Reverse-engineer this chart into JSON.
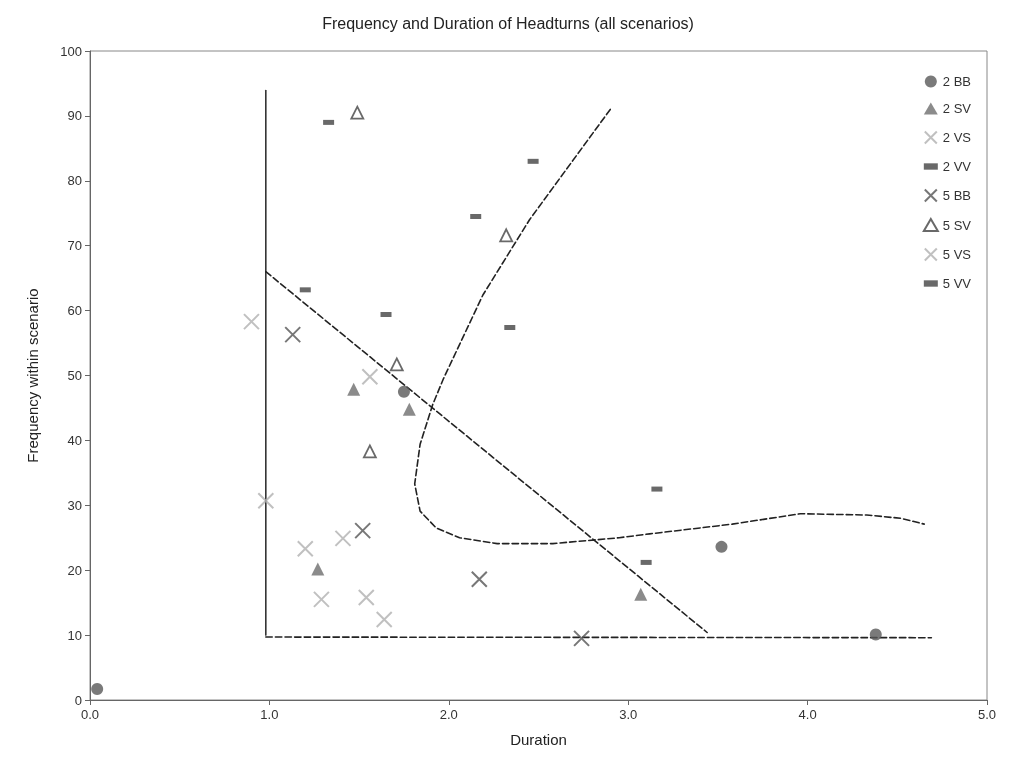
{
  "chart_data": {
    "type": "scatter",
    "title": "Frequency and Duration of Headturns (all scenarios)",
    "xlabel": "Duration",
    "ylabel": "Frequency within scenario",
    "xlim": [
      0,
      5
    ],
    "xticks": [
      {
        "value": 0,
        "label": "0.0"
      },
      {
        "value": 1,
        "label": "1.0"
      },
      {
        "value": 2,
        "label": "2.0"
      },
      {
        "value": 3,
        "label": "3.0"
      },
      {
        "value": 4,
        "label": "4.0"
      },
      {
        "value": 5,
        "label": "5.0"
      }
    ],
    "ylim": [
      0,
      100
    ],
    "yticks": [
      0,
      10,
      20,
      30,
      40,
      50,
      60,
      70,
      80,
      90,
      100
    ],
    "grid": false,
    "legend": "top right",
    "series": [
      {
        "name": "2 BB",
        "color": "#595959",
        "marker": "circle",
        "x": [
          0.04,
          1.75,
          3.52,
          4.38
        ],
        "values": [
          1.7,
          47.5,
          23.6,
          10.1
        ]
      },
      {
        "name": "2 SV",
        "color": "#6e6e6e",
        "marker": "triangle",
        "x": [
          1.47,
          1.78,
          1.27,
          3.07
        ],
        "values": [
          47.9,
          44.8,
          20.2,
          16.3
        ]
      },
      {
        "name": "2 VS",
        "color": "#b0b0b0",
        "marker": "cross",
        "x": [
          1.56,
          1.41,
          1.2,
          1.54
        ],
        "values": [
          49.8,
          24.9,
          23.3,
          15.8
        ]
      },
      {
        "name": "2 VV",
        "color": "#444444",
        "marker": "square",
        "x": [
          1.33,
          1.2,
          2.34,
          3.1
        ],
        "values": [
          89,
          63.2,
          57.4,
          21.2
        ]
      },
      {
        "name": "5 BB",
        "color": "#555555",
        "marker": "cross",
        "x": [
          1.13,
          1.52,
          2.17,
          2.74
        ],
        "values": [
          56.3,
          26.1,
          18.6,
          9.5
        ]
      },
      {
        "name": "5 SV",
        "color": "#444444",
        "marker": "triangle-open",
        "x": [
          1.49,
          2.32,
          1.71,
          1.56
        ],
        "values": [
          90.5,
          71.6,
          51.7,
          38.3
        ]
      },
      {
        "name": "5 VS",
        "color": "#b0b0b0",
        "marker": "cross",
        "x": [
          0.9,
          0.98,
          1.29,
          1.64
        ],
        "values": [
          58.3,
          30.7,
          15.5,
          12.4
        ]
      },
      {
        "name": "5 VV",
        "color": "#444444",
        "marker": "square",
        "x": [
          2.47,
          2.15,
          1.65,
          3.16
        ],
        "values": [
          83,
          74.5,
          59.4,
          32.5
        ]
      },
      {
        "type": "line",
        "color": "#333333",
        "marker": "none",
        "line_style": "solid",
        "x": [
          0.98,
          0.98
        ],
        "values": [
          10,
          93.9
        ]
      },
      {
        "type": "line",
        "color": "#222222",
        "marker": "none",
        "line_style": "dashed",
        "x": [
          0.98,
          4.69
        ],
        "values": [
          9.7,
          9.6
        ]
      },
      {
        "type": "line",
        "color": "#222222",
        "marker": "none",
        "line_style": "dashed",
        "x": [
          0.98,
          3.44
        ],
        "values": [
          66,
          10.4
        ]
      },
      {
        "type": "line",
        "color": "#222222",
        "marker": "none",
        "line_style": "dashed",
        "x": [
          2.9,
          2.45,
          2.19,
          1.97,
          1.91,
          1.84,
          1.81,
          1.84,
          1.93,
          2.06,
          2.27,
          2.58,
          2.95,
          3.12,
          3.58,
          3.96,
          4.33,
          4.52,
          4.65
        ],
        "values": [
          91,
          74,
          62.4,
          49.5,
          45.5,
          39.4,
          33.3,
          29.1,
          26.5,
          25,
          24.1,
          24.1,
          25,
          25.6,
          27.1,
          28.7,
          28.5,
          28,
          27.1
        ]
      }
    ]
  }
}
